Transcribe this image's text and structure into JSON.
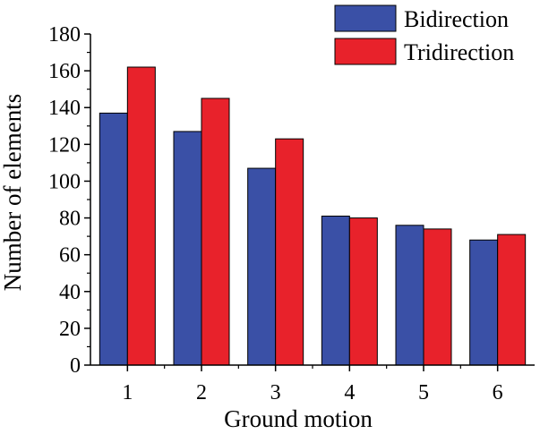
{
  "chart_data": {
    "type": "bar",
    "categories": [
      "1",
      "2",
      "3",
      "4",
      "5",
      "6"
    ],
    "series": [
      {
        "name": "Bidirection",
        "color": "#3a50a6",
        "values": [
          137,
          127,
          107,
          81,
          76,
          68
        ]
      },
      {
        "name": "Tridirection",
        "color": "#e8222b",
        "values": [
          162,
          145,
          123,
          80,
          74,
          71
        ]
      }
    ],
    "xlabel": "Ground motion",
    "ylabel": "Number of elements",
    "ylim": [
      0,
      180
    ],
    "yticks": [
      0,
      20,
      40,
      60,
      80,
      100,
      120,
      140,
      160,
      180
    ],
    "grid": false,
    "legend_position": "top-right"
  }
}
